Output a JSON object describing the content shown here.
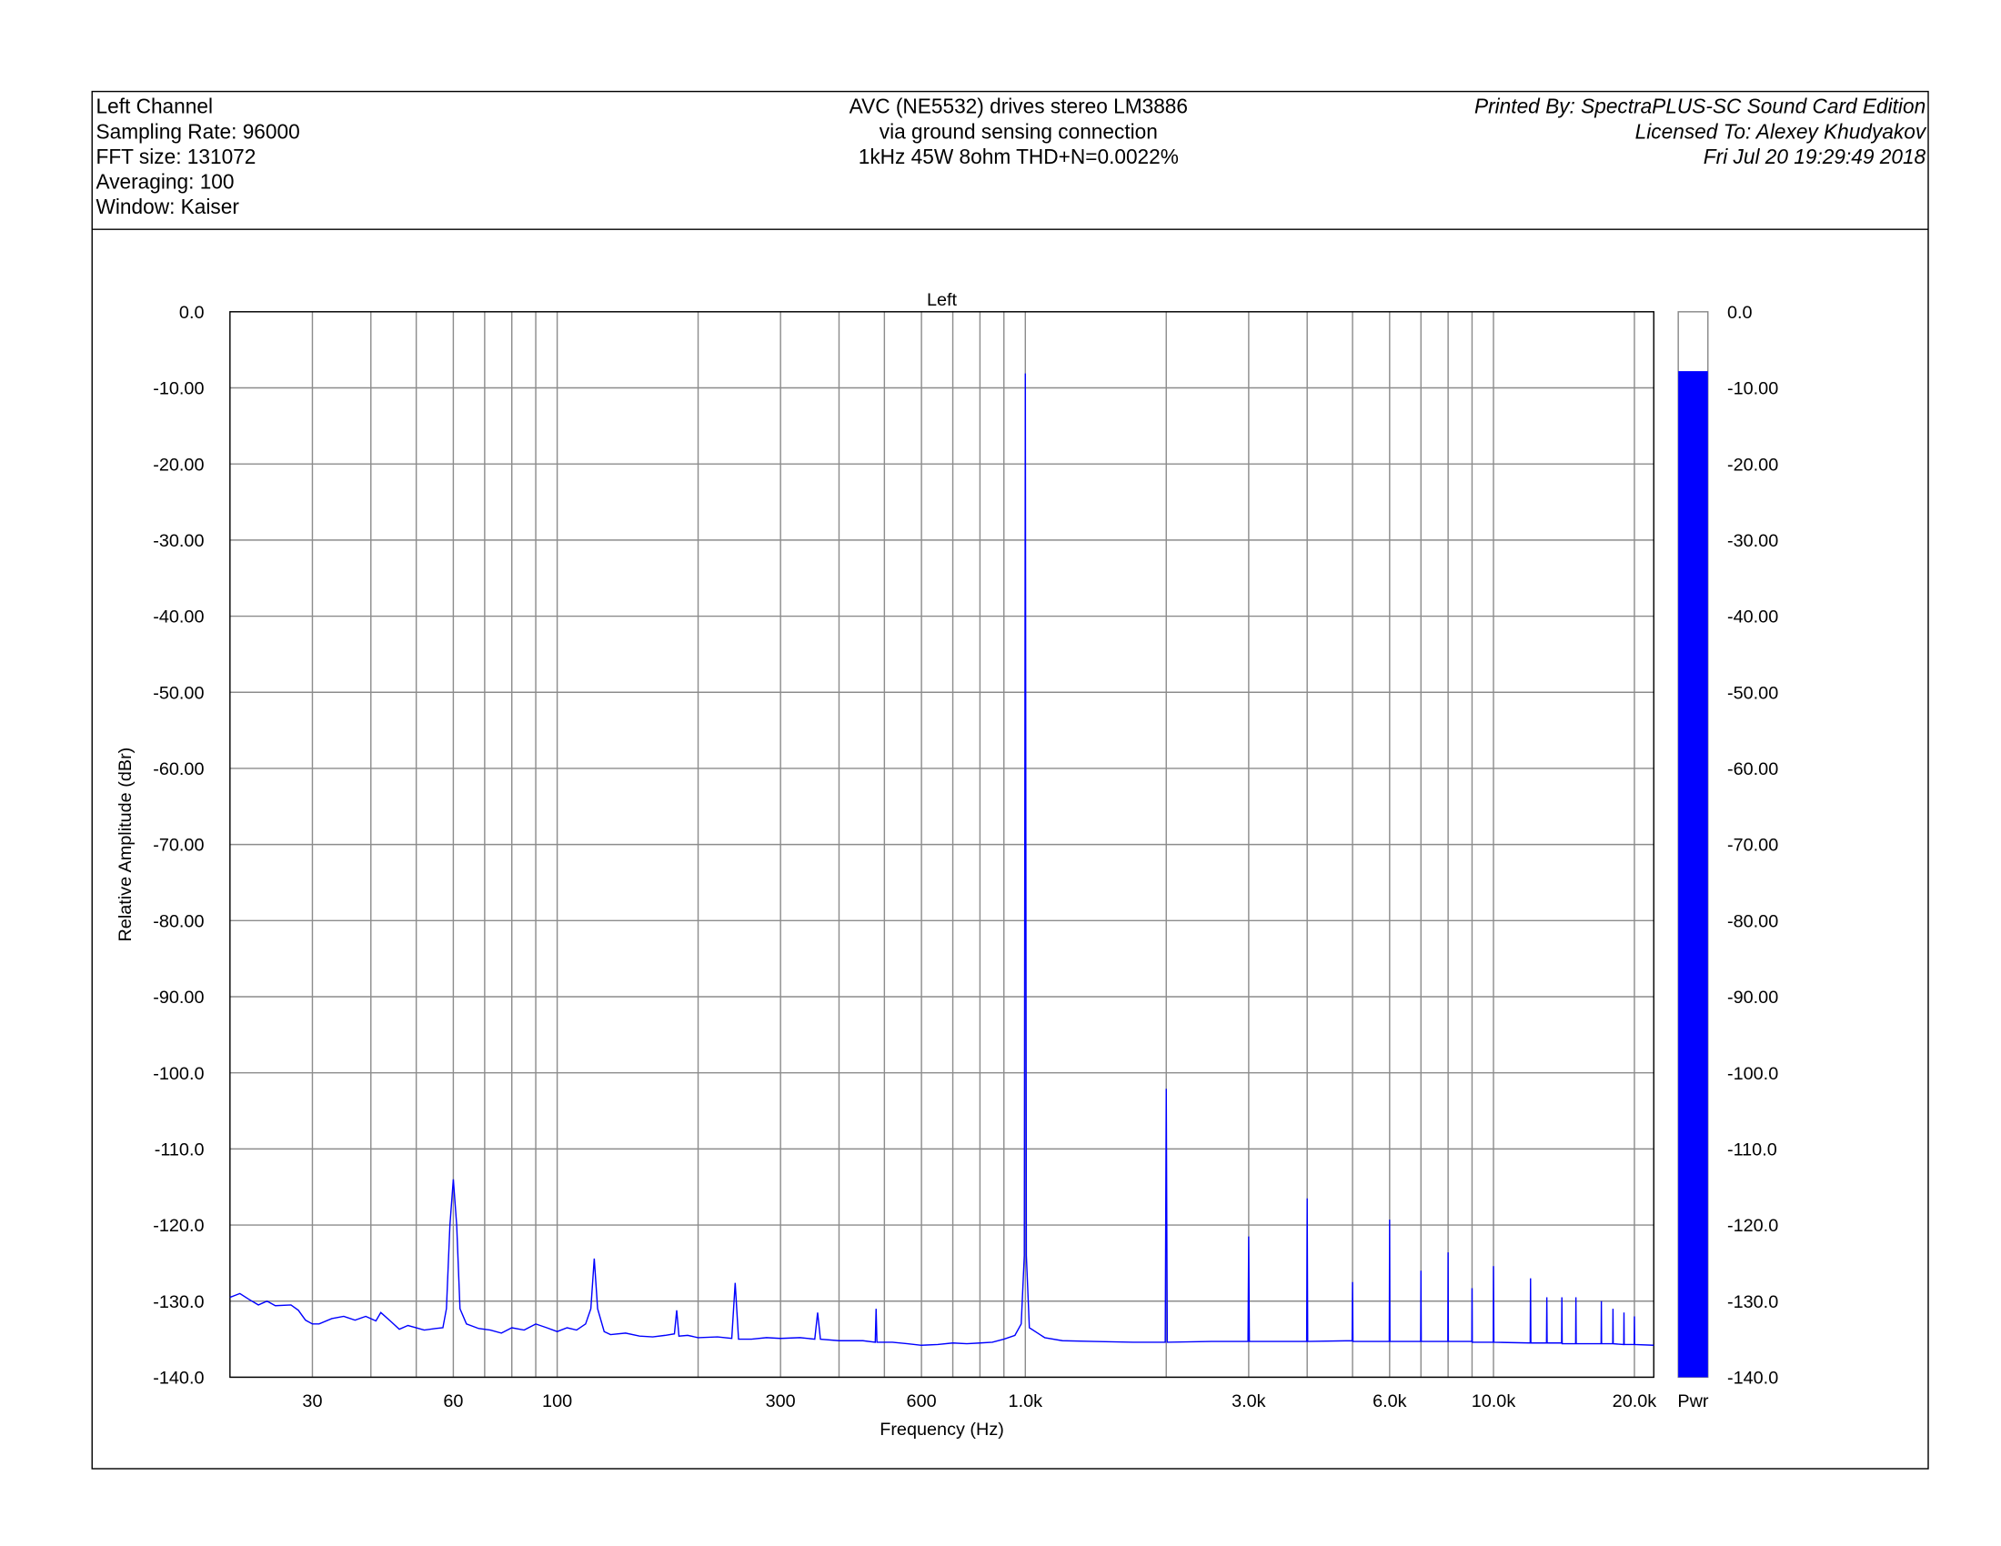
{
  "header": {
    "left": [
      "Left Channel",
      "Sampling Rate: 96000",
      "FFT size: 131072",
      "Averaging: 100",
      "Window: Kaiser"
    ],
    "center": [
      "AVC (NE5532) drives stereo LM3886",
      "via ground sensing connection",
      "1kHz 45W 8ohm THD+N=0.0022%"
    ],
    "right": [
      "Printed By: SpectraPLUS-SC Sound Card Edition",
      "Licensed To: Alexey Khudyakov",
      "Fri Jul 20 19:29:49 2018"
    ]
  },
  "chart_data": {
    "type": "line",
    "title": "Left",
    "x_label": "Frequency (Hz)",
    "y_label": "Relative Amplitude (dBr)",
    "xscale": "log",
    "grid": true,
    "color": "#0000ff",
    "xlim": [
      20,
      22000
    ],
    "ylim": [
      -140,
      0
    ],
    "xticks": [
      30,
      60,
      100,
      300,
      600,
      {
        "value": 1000,
        "label": "1.0k"
      },
      {
        "value": 3000,
        "label": "3.0k"
      },
      {
        "value": 6000,
        "label": "6.0k"
      },
      {
        "value": 10000,
        "label": "10.0k"
      },
      {
        "value": 20000,
        "label": "20.0k"
      }
    ],
    "xminor": [
      40,
      50,
      70,
      80,
      90,
      200,
      400,
      500,
      700,
      800,
      900,
      2000,
      4000,
      5000,
      7000,
      8000,
      9000
    ],
    "yticks": [
      {
        "value": 0,
        "label": "0.0"
      },
      {
        "value": -10,
        "label": "-10.00"
      },
      {
        "value": -20,
        "label": "-20.00"
      },
      {
        "value": -30,
        "label": "-30.00"
      },
      {
        "value": -40,
        "label": "-40.00"
      },
      {
        "value": -50,
        "label": "-50.00"
      },
      {
        "value": -60,
        "label": "-60.00"
      },
      {
        "value": -70,
        "label": "-70.00"
      },
      {
        "value": -80,
        "label": "-80.00"
      },
      {
        "value": -90,
        "label": "-90.00"
      },
      {
        "value": -100,
        "label": "-100.0"
      },
      {
        "value": -110,
        "label": "-110.0"
      },
      {
        "value": -120,
        "label": "-120.0"
      },
      {
        "value": -130,
        "label": "-130.0"
      },
      {
        "value": -140,
        "label": "-140.0"
      }
    ],
    "x": [
      20,
      21,
      22,
      23,
      24,
      25,
      27,
      28,
      29,
      30,
      31,
      33,
      35,
      37,
      39,
      41,
      42,
      44,
      46,
      48,
      50,
      52,
      55,
      57,
      58,
      59,
      60,
      61,
      62,
      64,
      68,
      72,
      76,
      80,
      85,
      90,
      95,
      100,
      105,
      110,
      115,
      118,
      120,
      122,
      126,
      130,
      140,
      150,
      160,
      170,
      178,
      180,
      182,
      190,
      200,
      220,
      236,
      240,
      244,
      260,
      280,
      300,
      330,
      355,
      360,
      365,
      400,
      450,
      478,
      480,
      482,
      520,
      560,
      600,
      650,
      700,
      750,
      800,
      850,
      900,
      950,
      980,
      995,
      1000,
      1005,
      1020,
      1100,
      1200,
      1400,
      1700,
      1990,
      2000,
      2010,
      2500,
      2990,
      3000,
      3010,
      3990,
      4000,
      4010,
      4990,
      5000,
      5010,
      5990,
      6000,
      6010,
      6990,
      7000,
      7010,
      7990,
      8000,
      8010,
      8990,
      9000,
      9010,
      9990,
      10000,
      10020,
      11980,
      12000,
      12020,
      12980,
      13000,
      13020,
      13980,
      14000,
      14020,
      14980,
      15000,
      15020,
      16980,
      17000,
      17020,
      17980,
      18000,
      18020,
      18980,
      19000,
      19020,
      19980,
      20000,
      20020,
      22000
    ],
    "values": [
      -129.5,
      -129,
      -129.8,
      -130.5,
      -130,
      -130.6,
      -130.5,
      -131.2,
      -132.5,
      -133,
      -133,
      -132.3,
      -132,
      -132.5,
      -132,
      -132.6,
      -131.5,
      -132.6,
      -133.7,
      -133.2,
      -133.5,
      -133.8,
      -133.6,
      -133.5,
      -131,
      -120,
      -114,
      -120,
      -131,
      -133,
      -133.6,
      -133.8,
      -134.2,
      -133.5,
      -133.8,
      -133,
      -133.5,
      -134,
      -133.5,
      -133.8,
      -133,
      -131,
      -124.4,
      -131,
      -134,
      -134.4,
      -134.2,
      -134.6,
      -134.7,
      -134.5,
      -134.3,
      -131.2,
      -134.6,
      -134.5,
      -134.8,
      -134.7,
      -134.9,
      -127.6,
      -135,
      -135,
      -134.8,
      -134.9,
      -134.8,
      -135,
      -131.5,
      -135,
      -135.2,
      -135.2,
      -135.4,
      -131,
      -135.4,
      -135.4,
      -135.6,
      -135.8,
      -135.7,
      -135.5,
      -135.6,
      -135.5,
      -135.4,
      -135,
      -134.5,
      -133,
      -124,
      -8.1,
      -124,
      -133.5,
      -134.8,
      -135.2,
      -135.3,
      -135.4,
      -135.4,
      -102.1,
      -135.4,
      -135.3,
      -135.3,
      -121.5,
      -135.3,
      -135.3,
      -116.5,
      -135.3,
      -135.2,
      -127.5,
      -135.3,
      -135.3,
      -119.3,
      -135.3,
      -135.3,
      -126,
      -135.3,
      -135.3,
      -123.6,
      -135.3,
      -135.3,
      -128.3,
      -135.4,
      -135.4,
      -125.4,
      -135.4,
      -135.5,
      -127,
      -135.5,
      -135.5,
      -129.5,
      -135.5,
      -135.5,
      -129.5,
      -135.6,
      -135.6,
      -129.5,
      -135.6,
      -135.6,
      -130,
      -135.6,
      -135.6,
      -131,
      -135.6,
      -135.7,
      -131.5,
      -135.7,
      -135.7,
      -132,
      -135.7,
      -135.8
    ],
    "meter": {
      "label": "Pwr",
      "value": -7.8,
      "color": "#0000ff"
    }
  }
}
